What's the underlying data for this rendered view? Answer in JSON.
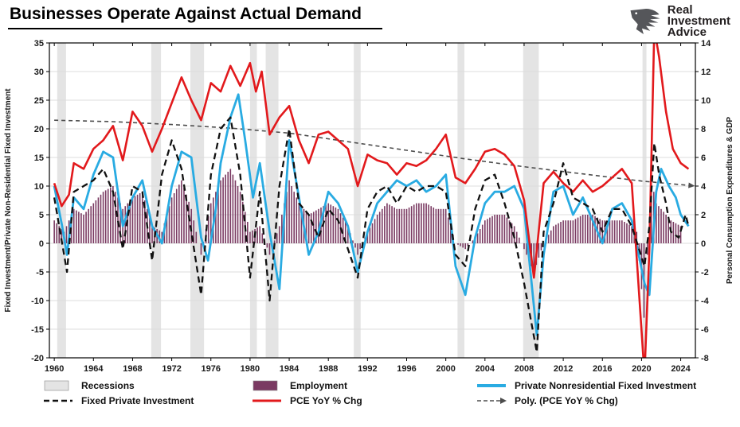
{
  "header": {
    "title": "Businesses Operate Against Actual Demand",
    "logo": [
      "Real",
      "Investment",
      "Advice"
    ]
  },
  "chart_data": {
    "type": "line",
    "title": "Businesses Operate Against Actual Demand",
    "left_axis": {
      "label": "Fixed Investment/Private Non-Residential Fixed Investment",
      "min": -20,
      "max": 35,
      "tick_step": 5,
      "ticks": [
        35,
        30,
        25,
        20,
        15,
        10,
        5,
        0,
        -5,
        -10,
        -15,
        -20
      ]
    },
    "right_axis": {
      "label": "Personal Consumption Expenditures & GDP",
      "min": -8,
      "max": 14,
      "tick_step": 2,
      "ticks": [
        14,
        12,
        10,
        8,
        6,
        4,
        2,
        0,
        -2,
        -4,
        -6,
        -8
      ]
    },
    "x_axis": {
      "min": 1959.5,
      "max": 2025.5,
      "tick_step": 4,
      "ticks": [
        1960,
        1964,
        1968,
        1972,
        1976,
        1980,
        1984,
        1988,
        1992,
        1996,
        2000,
        2004,
        2008,
        2012,
        2016,
        2020,
        2024
      ]
    },
    "grid_color": "#dcdcdc",
    "recessions": {
      "color": "#e4e4e4",
      "ranges": [
        [
          1960.3,
          1961.2
        ],
        [
          1969.9,
          1970.9
        ],
        [
          1973.9,
          1975.3
        ],
        [
          1980.0,
          1980.7
        ],
        [
          1981.6,
          1982.9
        ],
        [
          1990.6,
          1991.3
        ],
        [
          2001.2,
          2001.9
        ],
        [
          2007.9,
          2009.5
        ],
        [
          2020.1,
          2020.5
        ]
      ]
    },
    "bars": {
      "name": "Employment",
      "axis": "left",
      "color": "#7a3a62",
      "points": [
        [
          1960,
          4
        ],
        [
          1961,
          2
        ],
        [
          1962,
          6
        ],
        [
          1963,
          5
        ],
        [
          1964,
          7
        ],
        [
          1965,
          9
        ],
        [
          1966,
          10
        ],
        [
          1967,
          6
        ],
        [
          1968,
          8
        ],
        [
          1969,
          9
        ],
        [
          1970,
          3
        ],
        [
          1971,
          2
        ],
        [
          1972,
          8
        ],
        [
          1973,
          11
        ],
        [
          1974,
          6
        ],
        [
          1975,
          -2
        ],
        [
          1976,
          7
        ],
        [
          1977,
          11
        ],
        [
          1978,
          13
        ],
        [
          1979,
          9
        ],
        [
          1980,
          2
        ],
        [
          1981,
          3
        ],
        [
          1982,
          -2
        ],
        [
          1983,
          3
        ],
        [
          1984,
          11
        ],
        [
          1985,
          7
        ],
        [
          1986,
          5
        ],
        [
          1987,
          6
        ],
        [
          1988,
          7
        ],
        [
          1989,
          6
        ],
        [
          1990,
          3
        ],
        [
          1991,
          -2
        ],
        [
          1992,
          2
        ],
        [
          1993,
          5
        ],
        [
          1994,
          7
        ],
        [
          1995,
          6
        ],
        [
          1996,
          6
        ],
        [
          1997,
          7
        ],
        [
          1998,
          7
        ],
        [
          1999,
          6
        ],
        [
          2000,
          6
        ],
        [
          2001,
          0
        ],
        [
          2002,
          -1
        ],
        [
          2003,
          1
        ],
        [
          2004,
          4
        ],
        [
          2005,
          5
        ],
        [
          2006,
          5
        ],
        [
          2007,
          3
        ],
        [
          2008,
          -1
        ],
        [
          2009,
          -5
        ],
        [
          2010,
          0
        ],
        [
          2011,
          3
        ],
        [
          2012,
          4
        ],
        [
          2013,
          4
        ],
        [
          2014,
          5
        ],
        [
          2015,
          5
        ],
        [
          2016,
          4
        ],
        [
          2017,
          4
        ],
        [
          2018,
          4
        ],
        [
          2019,
          3
        ],
        [
          2019.5,
          2
        ],
        [
          2020.25,
          -13
        ],
        [
          2020.6,
          -2
        ],
        [
          2021,
          11
        ],
        [
          2021.5,
          7
        ],
        [
          2022,
          6
        ],
        [
          2023,
          4
        ],
        [
          2024,
          3
        ]
      ]
    },
    "series": [
      {
        "name": "Poly. (PCE YoY % Chg)",
        "axis": "right",
        "color": "#4d4d4d",
        "style": "dashed",
        "dash": "5 4",
        "width": 1.6,
        "arrow_end": true,
        "points": [
          [
            1960,
            8.6
          ],
          [
            1966,
            8.5
          ],
          [
            1972,
            8.3
          ],
          [
            1978,
            8.05
          ],
          [
            1984,
            7.7
          ],
          [
            1990,
            7.1
          ],
          [
            1996,
            6.5
          ],
          [
            2002,
            5.9
          ],
          [
            2008,
            5.35
          ],
          [
            2014,
            4.85
          ],
          [
            2020,
            4.35
          ],
          [
            2024.8,
            4.05
          ]
        ]
      },
      {
        "name": "Private Nonresidential Fixed Investment",
        "axis": "left",
        "color": "#29abe2",
        "style": "solid",
        "width": 2.8,
        "points": [
          [
            1960,
            10
          ],
          [
            1960.8,
            3
          ],
          [
            1961.3,
            -2
          ],
          [
            1962,
            8
          ],
          [
            1963,
            6
          ],
          [
            1964,
            12
          ],
          [
            1965,
            16
          ],
          [
            1966,
            15
          ],
          [
            1967,
            3
          ],
          [
            1968,
            8
          ],
          [
            1969,
            11
          ],
          [
            1970,
            3
          ],
          [
            1971,
            0
          ],
          [
            1972,
            10
          ],
          [
            1973,
            16
          ],
          [
            1974,
            15
          ],
          [
            1975,
            1
          ],
          [
            1975.7,
            -3
          ],
          [
            1976.5,
            6
          ],
          [
            1977,
            14
          ],
          [
            1978,
            22
          ],
          [
            1978.8,
            26
          ],
          [
            1979.5,
            18
          ],
          [
            1980.3,
            8
          ],
          [
            1981,
            14
          ],
          [
            1982,
            2
          ],
          [
            1983,
            -8
          ],
          [
            1984,
            18
          ],
          [
            1985,
            8
          ],
          [
            1986,
            -2
          ],
          [
            1987,
            2
          ],
          [
            1988,
            9
          ],
          [
            1989,
            7
          ],
          [
            1990,
            3
          ],
          [
            1991,
            -5
          ],
          [
            1992,
            2
          ],
          [
            1993,
            7
          ],
          [
            1994,
            9
          ],
          [
            1995,
            11
          ],
          [
            1996,
            10
          ],
          [
            1997,
            11
          ],
          [
            1998,
            9
          ],
          [
            1999,
            10
          ],
          [
            2000,
            12
          ],
          [
            2001,
            -4
          ],
          [
            2002,
            -9
          ],
          [
            2003,
            1
          ],
          [
            2004,
            7
          ],
          [
            2005,
            9
          ],
          [
            2006,
            9
          ],
          [
            2007,
            10
          ],
          [
            2008,
            6
          ],
          [
            2009.3,
            -16
          ],
          [
            2010,
            -2
          ],
          [
            2011,
            9
          ],
          [
            2012,
            10
          ],
          [
            2013,
            5
          ],
          [
            2014,
            8
          ],
          [
            2015,
            4
          ],
          [
            2016,
            0
          ],
          [
            2017,
            6
          ],
          [
            2018,
            7
          ],
          [
            2019,
            4
          ],
          [
            2020.3,
            -7
          ],
          [
            2020.8,
            -9
          ],
          [
            2021.5,
            9
          ],
          [
            2022,
            13
          ],
          [
            2022.8,
            10
          ],
          [
            2023.5,
            8
          ],
          [
            2024,
            5
          ],
          [
            2024.8,
            3
          ]
        ]
      },
      {
        "name": "PCE YoY % Chg",
        "axis": "right",
        "color": "#e2191c",
        "style": "solid",
        "width": 2.6,
        "points": [
          [
            1960,
            4.2
          ],
          [
            1960.75,
            2.6
          ],
          [
            1961.5,
            3.4
          ],
          [
            1962,
            5.6
          ],
          [
            1963,
            5.2
          ],
          [
            1964,
            6.6
          ],
          [
            1965,
            7.2
          ],
          [
            1966,
            8.2
          ],
          [
            1967,
            5.8
          ],
          [
            1968,
            9.2
          ],
          [
            1969,
            8.2
          ],
          [
            1970,
            6.4
          ],
          [
            1971,
            8.0
          ],
          [
            1972,
            9.8
          ],
          [
            1973,
            11.6
          ],
          [
            1974,
            10.0
          ],
          [
            1975,
            8.6
          ],
          [
            1976,
            11.2
          ],
          [
            1977,
            10.6
          ],
          [
            1978,
            12.4
          ],
          [
            1979,
            11.0
          ],
          [
            1980,
            12.6
          ],
          [
            1980.6,
            10.6
          ],
          [
            1981.2,
            12.0
          ],
          [
            1982,
            7.6
          ],
          [
            1983,
            8.8
          ],
          [
            1984,
            9.6
          ],
          [
            1985,
            7.2
          ],
          [
            1986,
            5.6
          ],
          [
            1987,
            7.6
          ],
          [
            1988,
            7.8
          ],
          [
            1989,
            7.2
          ],
          [
            1990,
            6.6
          ],
          [
            1991,
            4.0
          ],
          [
            1992,
            6.2
          ],
          [
            1993,
            5.8
          ],
          [
            1994,
            5.6
          ],
          [
            1995,
            4.8
          ],
          [
            1996,
            5.6
          ],
          [
            1997,
            5.4
          ],
          [
            1998,
            5.8
          ],
          [
            1999,
            6.6
          ],
          [
            2000,
            7.6
          ],
          [
            2001,
            4.6
          ],
          [
            2002,
            4.2
          ],
          [
            2003,
            5.2
          ],
          [
            2004,
            6.4
          ],
          [
            2005,
            6.6
          ],
          [
            2006,
            6.2
          ],
          [
            2007,
            5.4
          ],
          [
            2008,
            3.0
          ],
          [
            2009,
            -2.4
          ],
          [
            2010,
            4.2
          ],
          [
            2011,
            5.0
          ],
          [
            2012,
            4.2
          ],
          [
            2013,
            3.6
          ],
          [
            2014,
            4.4
          ],
          [
            2015,
            3.6
          ],
          [
            2016,
            4.0
          ],
          [
            2017,
            4.6
          ],
          [
            2018,
            5.2
          ],
          [
            2019,
            4.2
          ],
          [
            2020.3,
            -9.2
          ],
          [
            2020.8,
            -0.5
          ],
          [
            2021.3,
            15.0
          ],
          [
            2021.8,
            13.0
          ],
          [
            2022.5,
            9.2
          ],
          [
            2023.2,
            6.6
          ],
          [
            2024,
            5.6
          ],
          [
            2024.8,
            5.2
          ]
        ]
      },
      {
        "name": "Fixed Private Investment",
        "axis": "left",
        "color": "#111111",
        "style": "dashed",
        "dash": "8 5",
        "width": 2.3,
        "points": [
          [
            1960,
            8
          ],
          [
            1960.8,
            0
          ],
          [
            1961.3,
            -5
          ],
          [
            1962,
            9
          ],
          [
            1963,
            10
          ],
          [
            1964,
            11
          ],
          [
            1965,
            13
          ],
          [
            1966,
            9
          ],
          [
            1967,
            -1
          ],
          [
            1968,
            10
          ],
          [
            1969,
            9
          ],
          [
            1970,
            -3
          ],
          [
            1971,
            12
          ],
          [
            1972,
            18
          ],
          [
            1973,
            13
          ],
          [
            1974,
            2
          ],
          [
            1975,
            -9
          ],
          [
            1976,
            12
          ],
          [
            1977,
            20
          ],
          [
            1978,
            22
          ],
          [
            1979,
            12
          ],
          [
            1980,
            -6
          ],
          [
            1981,
            9
          ],
          [
            1982,
            -10
          ],
          [
            1983,
            10
          ],
          [
            1984,
            20
          ],
          [
            1985,
            7
          ],
          [
            1986,
            5
          ],
          [
            1987,
            1
          ],
          [
            1988,
            6
          ],
          [
            1989,
            4
          ],
          [
            1990,
            -1
          ],
          [
            1991,
            -6
          ],
          [
            1992,
            6
          ],
          [
            1993,
            9
          ],
          [
            1994,
            10
          ],
          [
            1995,
            7
          ],
          [
            1996,
            10
          ],
          [
            1997,
            9
          ],
          [
            1998,
            10
          ],
          [
            1999,
            10
          ],
          [
            2000,
            9
          ],
          [
            2001,
            -2
          ],
          [
            2002,
            -4
          ],
          [
            2003,
            6
          ],
          [
            2004,
            11
          ],
          [
            2005,
            12
          ],
          [
            2006,
            7
          ],
          [
            2007,
            1
          ],
          [
            2008,
            -7
          ],
          [
            2009.3,
            -19
          ],
          [
            2010,
            2
          ],
          [
            2011,
            7
          ],
          [
            2012,
            14
          ],
          [
            2013,
            8
          ],
          [
            2014,
            7
          ],
          [
            2015,
            6
          ],
          [
            2016,
            2
          ],
          [
            2017,
            6
          ],
          [
            2018,
            6
          ],
          [
            2019,
            3
          ],
          [
            2020.3,
            -4
          ],
          [
            2020.8,
            3
          ],
          [
            2021.3,
            17.5
          ],
          [
            2021.8,
            12
          ],
          [
            2022.5,
            7
          ],
          [
            2023,
            2
          ],
          [
            2023.8,
            1
          ],
          [
            2024.5,
            5
          ],
          [
            2024.8,
            3
          ]
        ]
      }
    ],
    "legend": [
      {
        "label": "Recessions",
        "swatch": "rect",
        "color": "#e4e4e4"
      },
      {
        "label": "Employment",
        "swatch": "rect",
        "color": "#7a3a62"
      },
      {
        "label": "Private Nonresidential Fixed Investment",
        "swatch": "line",
        "color": "#29abe2",
        "lw": 4
      },
      {
        "label": "Fixed Private Investment",
        "swatch": "dash",
        "color": "#111111"
      },
      {
        "label": "PCE YoY % Chg",
        "swatch": "line",
        "color": "#e2191c",
        "lw": 3
      },
      {
        "label": "Poly. (PCE YoY % Chg)",
        "swatch": "dash-arrow",
        "color": "#4d4d4d"
      }
    ]
  }
}
